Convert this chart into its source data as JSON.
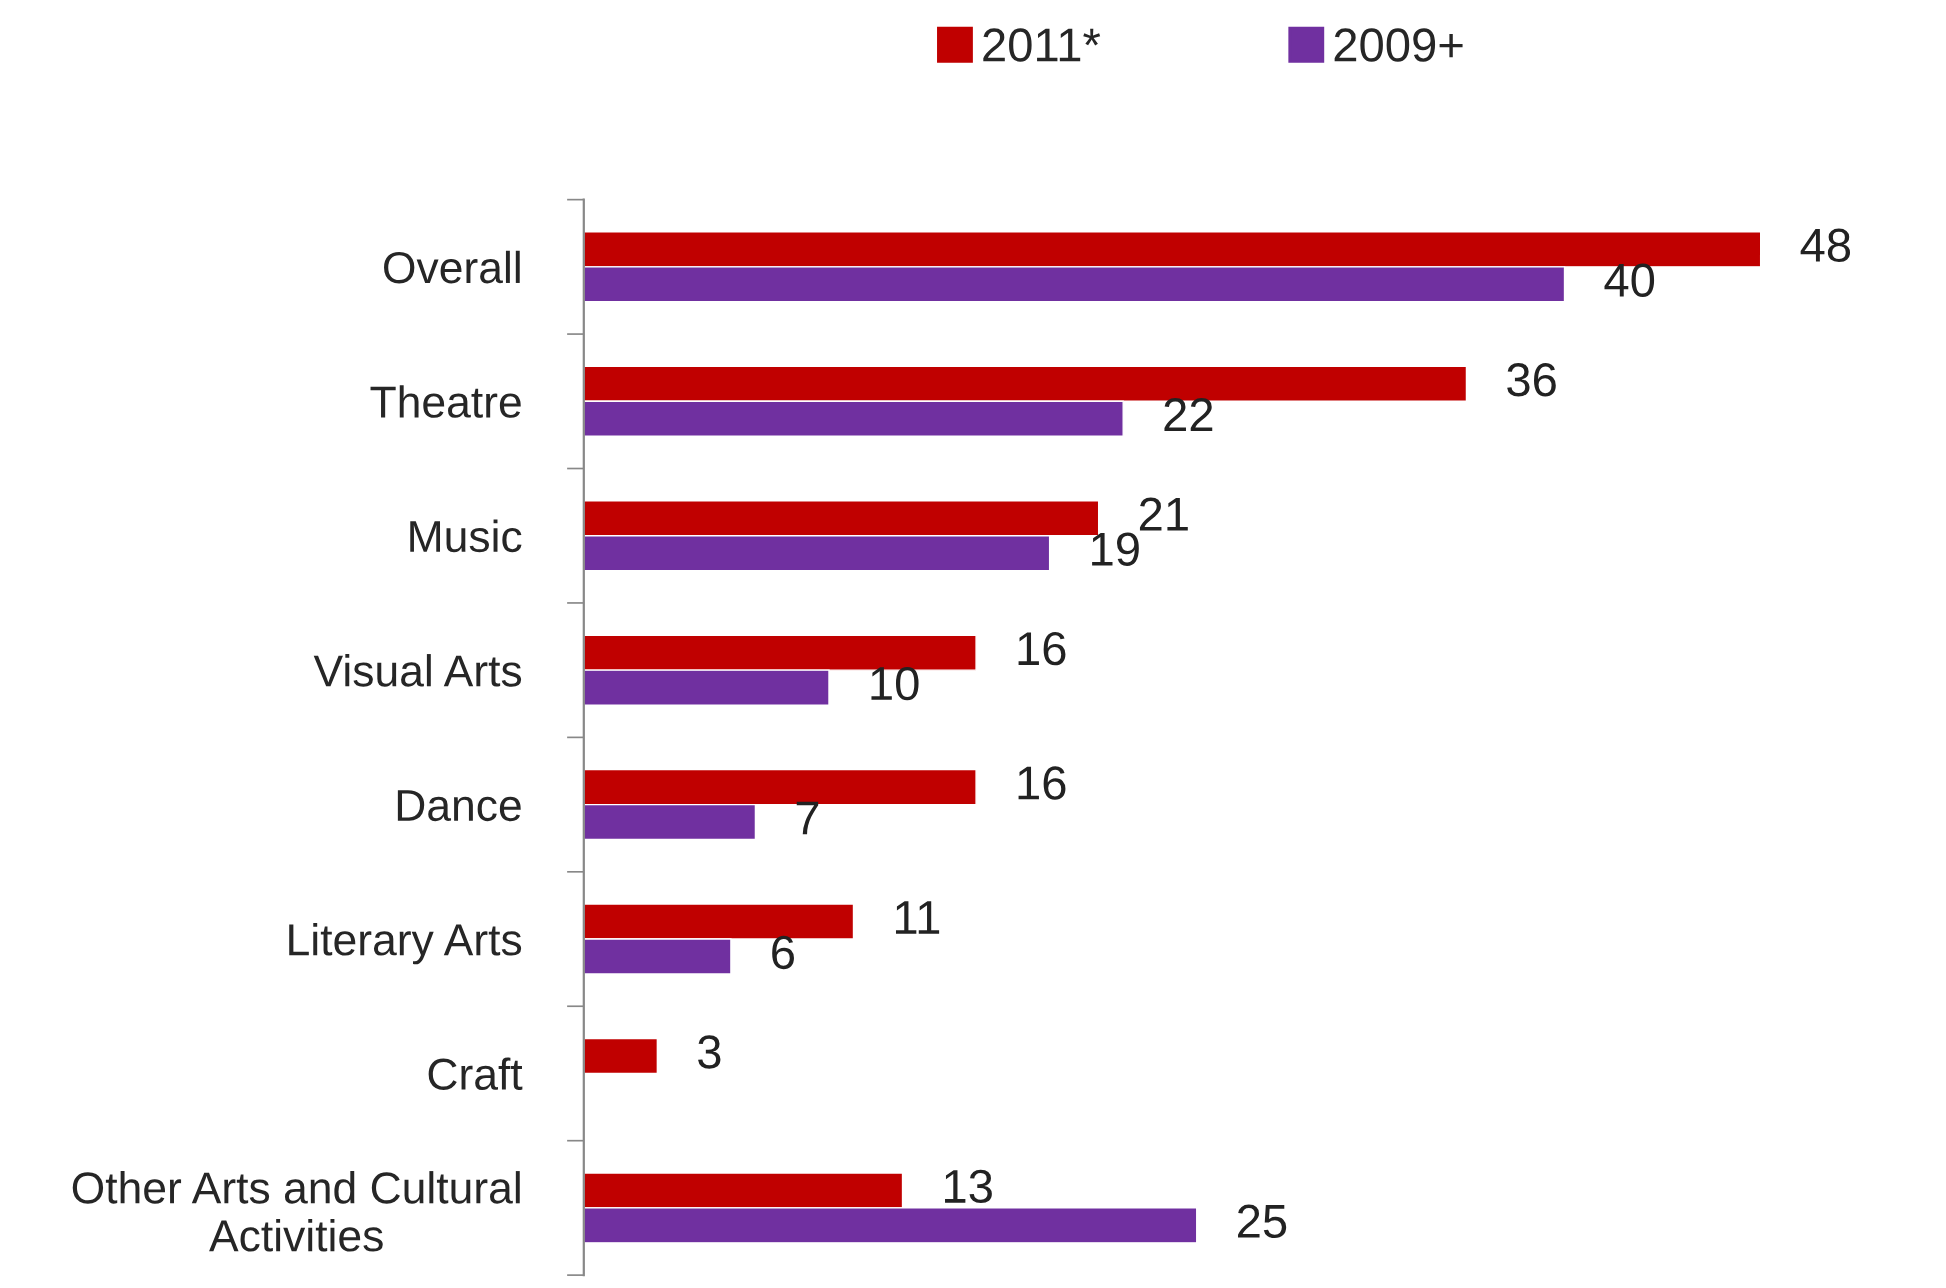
{
  "chart_data": {
    "type": "bar",
    "orientation": "horizontal",
    "categories": [
      "Overall",
      "Theatre",
      "Music",
      "Visual Arts",
      "Dance",
      "Literary Arts",
      "Craft",
      "Other Arts and Cultural\nActivities"
    ],
    "series": [
      {
        "name": "2011*",
        "color": "#c00000",
        "values": [
          48,
          36,
          21,
          16,
          16,
          11,
          3,
          13
        ]
      },
      {
        "name": "2009+",
        "color": "#7030a0",
        "values": [
          40,
          22,
          19,
          10,
          7,
          6,
          null,
          25
        ]
      }
    ],
    "data_labels": true,
    "legend": "top",
    "grid": false
  }
}
